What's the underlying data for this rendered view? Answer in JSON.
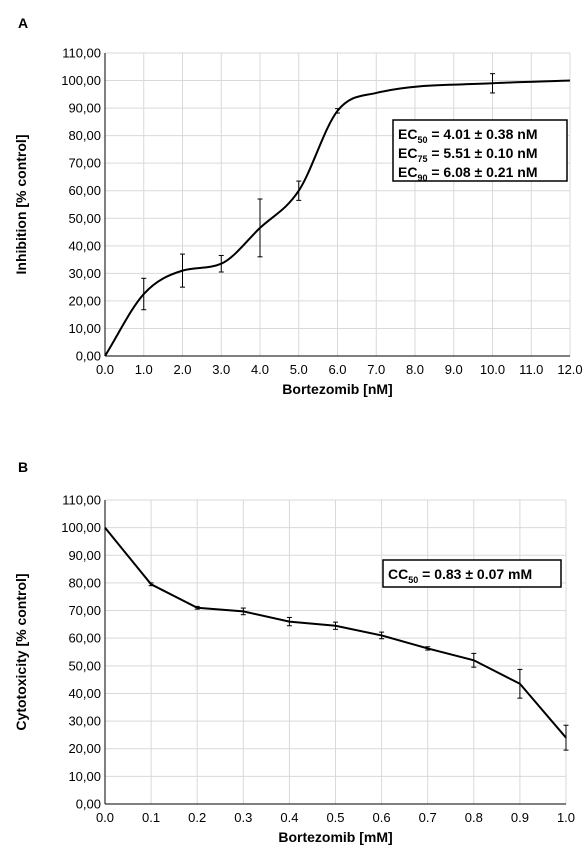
{
  "chart_data": [
    {
      "panel_label": "A",
      "type": "line",
      "xlabel": "Bortezomib [nM]",
      "ylabel": "Inhibition [% control]",
      "xlim": [
        0,
        12
      ],
      "ylim": [
        0,
        110
      ],
      "xticks": [
        "0.0",
        "1.0",
        "2.0",
        "3.0",
        "4.0",
        "5.0",
        "6.0",
        "7.0",
        "8.0",
        "9.0",
        "10.0",
        "11.0",
        "12.0"
      ],
      "yticks": [
        "0,00",
        "10,00",
        "20,00",
        "30,00",
        "40,00",
        "50,00",
        "60,00",
        "70,00",
        "80,00",
        "90,00",
        "100,00",
        "110,00"
      ],
      "grid": true,
      "smooth": true,
      "series": [
        {
          "color": "#000000",
          "x": [
            0,
            1,
            2,
            3,
            4,
            5,
            6,
            7,
            10,
            12
          ],
          "y": [
            0,
            22.5,
            31,
            33.5,
            46.5,
            60,
            89,
            95.5,
            99,
            100
          ],
          "error": [
            0,
            5.7,
            6,
            3,
            10.5,
            3.5,
            0.8,
            0,
            3.5,
            0
          ]
        }
      ],
      "annotation": [
        {
          "label": "EC",
          "sub": "50",
          "value": " = 4.01 ± 0.38 nM"
        },
        {
          "label": "EC",
          "sub": "75",
          "value": " = 5.51 ± 0.10 nM"
        },
        {
          "label": "EC",
          "sub": "90",
          "value": " = 6.08 ± 0.21 nM"
        }
      ]
    },
    {
      "panel_label": "B",
      "type": "line",
      "xlabel": "Bortezomib [mM]",
      "ylabel": "Cytotoxicity [% control]",
      "xlim": [
        0,
        1
      ],
      "ylim": [
        0,
        110
      ],
      "xticks": [
        "0.0",
        "0.1",
        "0.2",
        "0.3",
        "0.4",
        "0.5",
        "0.6",
        "0.7",
        "0.8",
        "0.9",
        "1.0"
      ],
      "yticks": [
        "0,00",
        "10,00",
        "20,00",
        "30,00",
        "40,00",
        "50,00",
        "60,00",
        "70,00",
        "80,00",
        "90,00",
        "100,00",
        "110,00"
      ],
      "grid": true,
      "smooth": false,
      "series": [
        {
          "color": "#000000",
          "x": [
            0,
            0.1,
            0.2,
            0.3,
            0.4,
            0.5,
            0.6,
            0.7,
            0.8,
            0.9,
            1.0
          ],
          "y": [
            100,
            79.5,
            71,
            69.7,
            66,
            64.5,
            61,
            56.3,
            52,
            43.5,
            24
          ],
          "error": [
            0,
            0.5,
            0.5,
            1.2,
            1.5,
            1.3,
            1.2,
            0.6,
            2.5,
            5.2,
            4.5
          ]
        }
      ],
      "annotation": [
        {
          "label": "CC",
          "sub": "50",
          "value": " = 0.83 ± 0.07 mM"
        }
      ]
    }
  ]
}
